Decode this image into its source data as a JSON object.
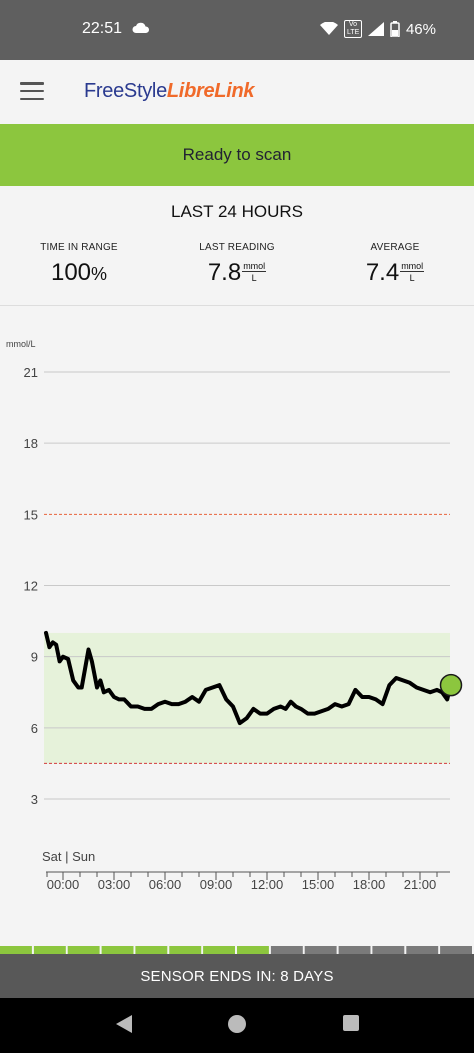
{
  "status_bar": {
    "time": "22:51",
    "network_badge": "Vo LTE",
    "battery": "46%",
    "icons": [
      "cloud-icon",
      "wifi-icon",
      "signal-icon",
      "battery-icon"
    ]
  },
  "app_bar": {
    "logo_part1": "FreeStyle",
    "logo_part2": "LibreLink",
    "colors": {
      "logo_blue": "#2a3a8f",
      "logo_orange": "#f06a2a"
    }
  },
  "scan_banner": {
    "label": "Ready to scan",
    "color": "#8cc63e"
  },
  "summary": {
    "title": "LAST 24 HOURS",
    "time_in_range": {
      "label": "TIME IN RANGE",
      "value": "100",
      "unit": "%"
    },
    "last_reading": {
      "label": "LAST READING",
      "value": "7.8",
      "unit_top": "mmol",
      "unit_bottom": "L"
    },
    "average": {
      "label": "AVERAGE",
      "value": "7.4",
      "unit_top": "mmol",
      "unit_bottom": "L"
    }
  },
  "chart_data": {
    "type": "line",
    "ylabel": "mmol/L",
    "ylim": [
      0,
      22
    ],
    "yticks": [
      3,
      6,
      9,
      12,
      15,
      18,
      21
    ],
    "xticks": [
      "00:00",
      "03:00",
      "06:00",
      "09:00",
      "12:00",
      "15:00",
      "18:00",
      "21:00"
    ],
    "day_marker": "Sat | Sun",
    "target_range": [
      4.5,
      10
    ],
    "high_threshold": 15,
    "low_threshold": 4.5,
    "colors": {
      "line": "#000000",
      "range_fill": "#e6f2da",
      "threshold": "#e8623a",
      "last_point": "#8cc63e"
    },
    "series": [
      {
        "x": [
          -1.0,
          -0.8,
          -0.6,
          -0.4,
          -0.2,
          0.0,
          0.3,
          0.6,
          0.9,
          1.1,
          1.3,
          1.5,
          1.7,
          2.0,
          2.2,
          2.4,
          2.7,
          3.0,
          3.3,
          3.6,
          4.0,
          4.4,
          4.8,
          5.2,
          5.6,
          6.0,
          6.4,
          6.8,
          7.2,
          7.6,
          8.0,
          8.4,
          8.8,
          9.2,
          9.6,
          10.0,
          10.4,
          10.8,
          11.2,
          11.6,
          12.0,
          12.4,
          12.8,
          13.1,
          13.4,
          13.7,
          14.0,
          14.4,
          14.8,
          15.2,
          15.6,
          16.0,
          16.4,
          16.8,
          17.2,
          17.6,
          18.0,
          18.4,
          18.8,
          19.2,
          19.6,
          20.0,
          20.4,
          20.8,
          21.2,
          21.6,
          22.0,
          22.3,
          22.6,
          22.8
        ],
        "y": [
          10.0,
          9.4,
          9.6,
          9.5,
          8.8,
          9.0,
          8.9,
          8.0,
          7.7,
          7.7,
          8.5,
          9.3,
          8.8,
          7.7,
          8.0,
          7.5,
          7.6,
          7.3,
          7.2,
          7.2,
          6.9,
          6.9,
          6.8,
          6.8,
          7.0,
          7.1,
          7.0,
          7.0,
          7.1,
          7.3,
          7.1,
          7.6,
          7.7,
          7.8,
          7.2,
          6.9,
          6.2,
          6.4,
          6.8,
          6.6,
          6.6,
          6.8,
          6.9,
          6.8,
          7.1,
          6.9,
          6.8,
          6.6,
          6.6,
          6.7,
          6.8,
          7.0,
          6.9,
          7.0,
          7.6,
          7.3,
          7.3,
          7.2,
          7.0,
          7.8,
          8.1,
          8.0,
          7.9,
          7.7,
          7.6,
          7.5,
          7.6,
          7.5,
          7.2,
          7.8
        ],
        "last_value": 7.8
      }
    ]
  },
  "sensor": {
    "label": "SENSOR ENDS IN: 8 DAYS",
    "segments_total": 14,
    "segments_elapsed": 8
  },
  "nav_bar": {
    "icons": [
      "back-icon",
      "home-icon",
      "recents-icon"
    ]
  }
}
